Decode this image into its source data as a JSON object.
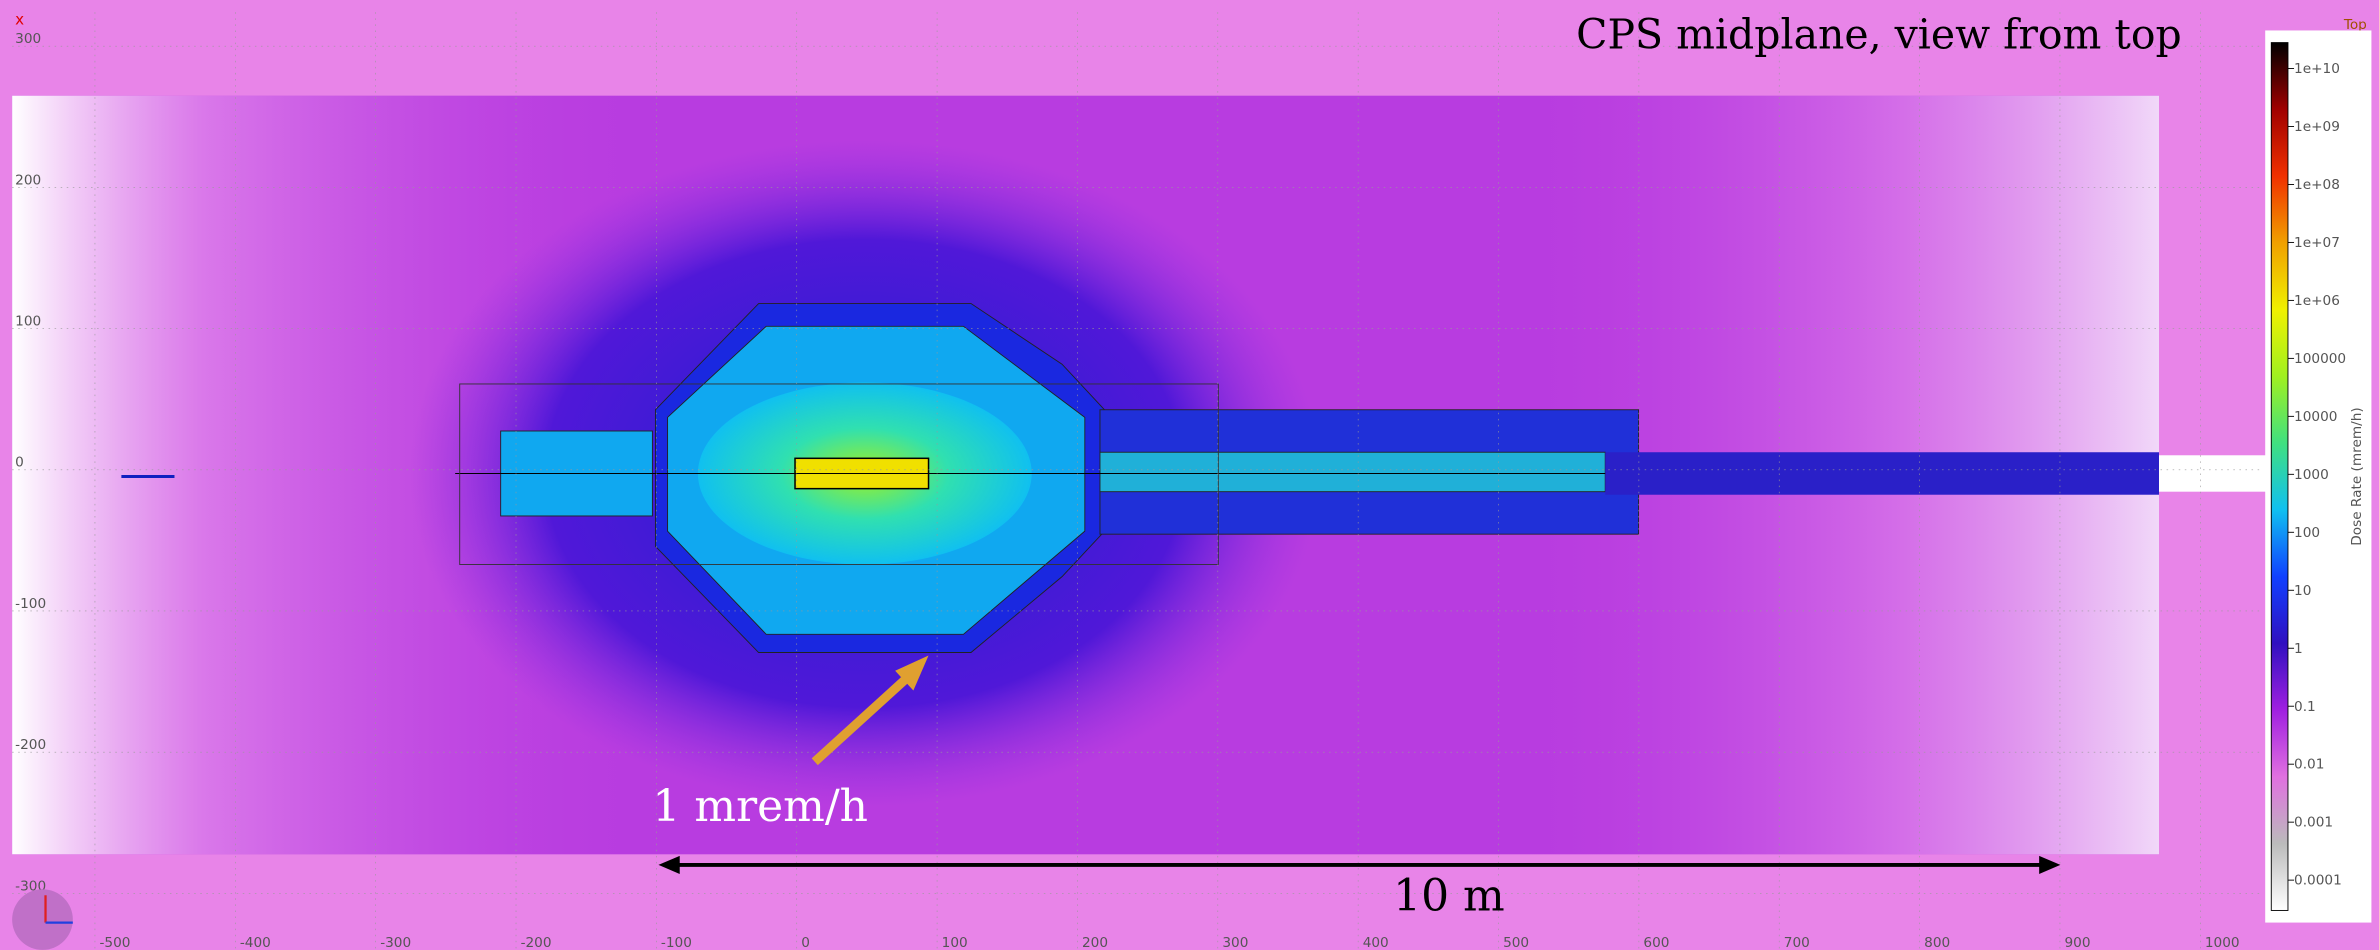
{
  "chart_data": {
    "type": "heatmap",
    "title": "CPS midplane, view from top",
    "view_label": "Top",
    "annotations": [
      "1 mrem/h",
      "10 m"
    ],
    "xlim": [
      -559,
      1043
    ],
    "ylim": [
      -340,
      324
    ],
    "xticks": [
      -500,
      -400,
      -300,
      -200,
      -100,
      0,
      100,
      200,
      300,
      400,
      500,
      600,
      700,
      800,
      900,
      1000
    ],
    "yticks": [
      -300,
      -200,
      -100,
      0,
      100,
      200,
      300
    ],
    "grid": true,
    "colorbar": {
      "label": "Dose Rate (mrem/h)",
      "log_scale": true,
      "clim": [
        3e-05,
        28000000000
      ],
      "ticks": [
        {
          "value": 10000000000,
          "label": "1e+10"
        },
        {
          "value": 1000000000,
          "label": "1e+09"
        },
        {
          "value": 100000000,
          "label": "1e+08"
        },
        {
          "value": 10000000,
          "label": "1e+07"
        },
        {
          "value": 1000000,
          "label": "1e+06"
        },
        100000,
        10000,
        1000,
        100,
        10,
        1,
        0.1,
        0.01,
        0.001,
        0.0001
      ],
      "colors": [
        "#ffffff",
        "#bbbbbb",
        "#e070e0",
        "#a020e0",
        "#3010c0",
        "#1040ff",
        "#10c0f0",
        "#40e080",
        "#a0f020",
        "#f0f000",
        "#f0a000",
        "#f03000",
        "#a00000",
        "#000000"
      ]
    }
  }
}
